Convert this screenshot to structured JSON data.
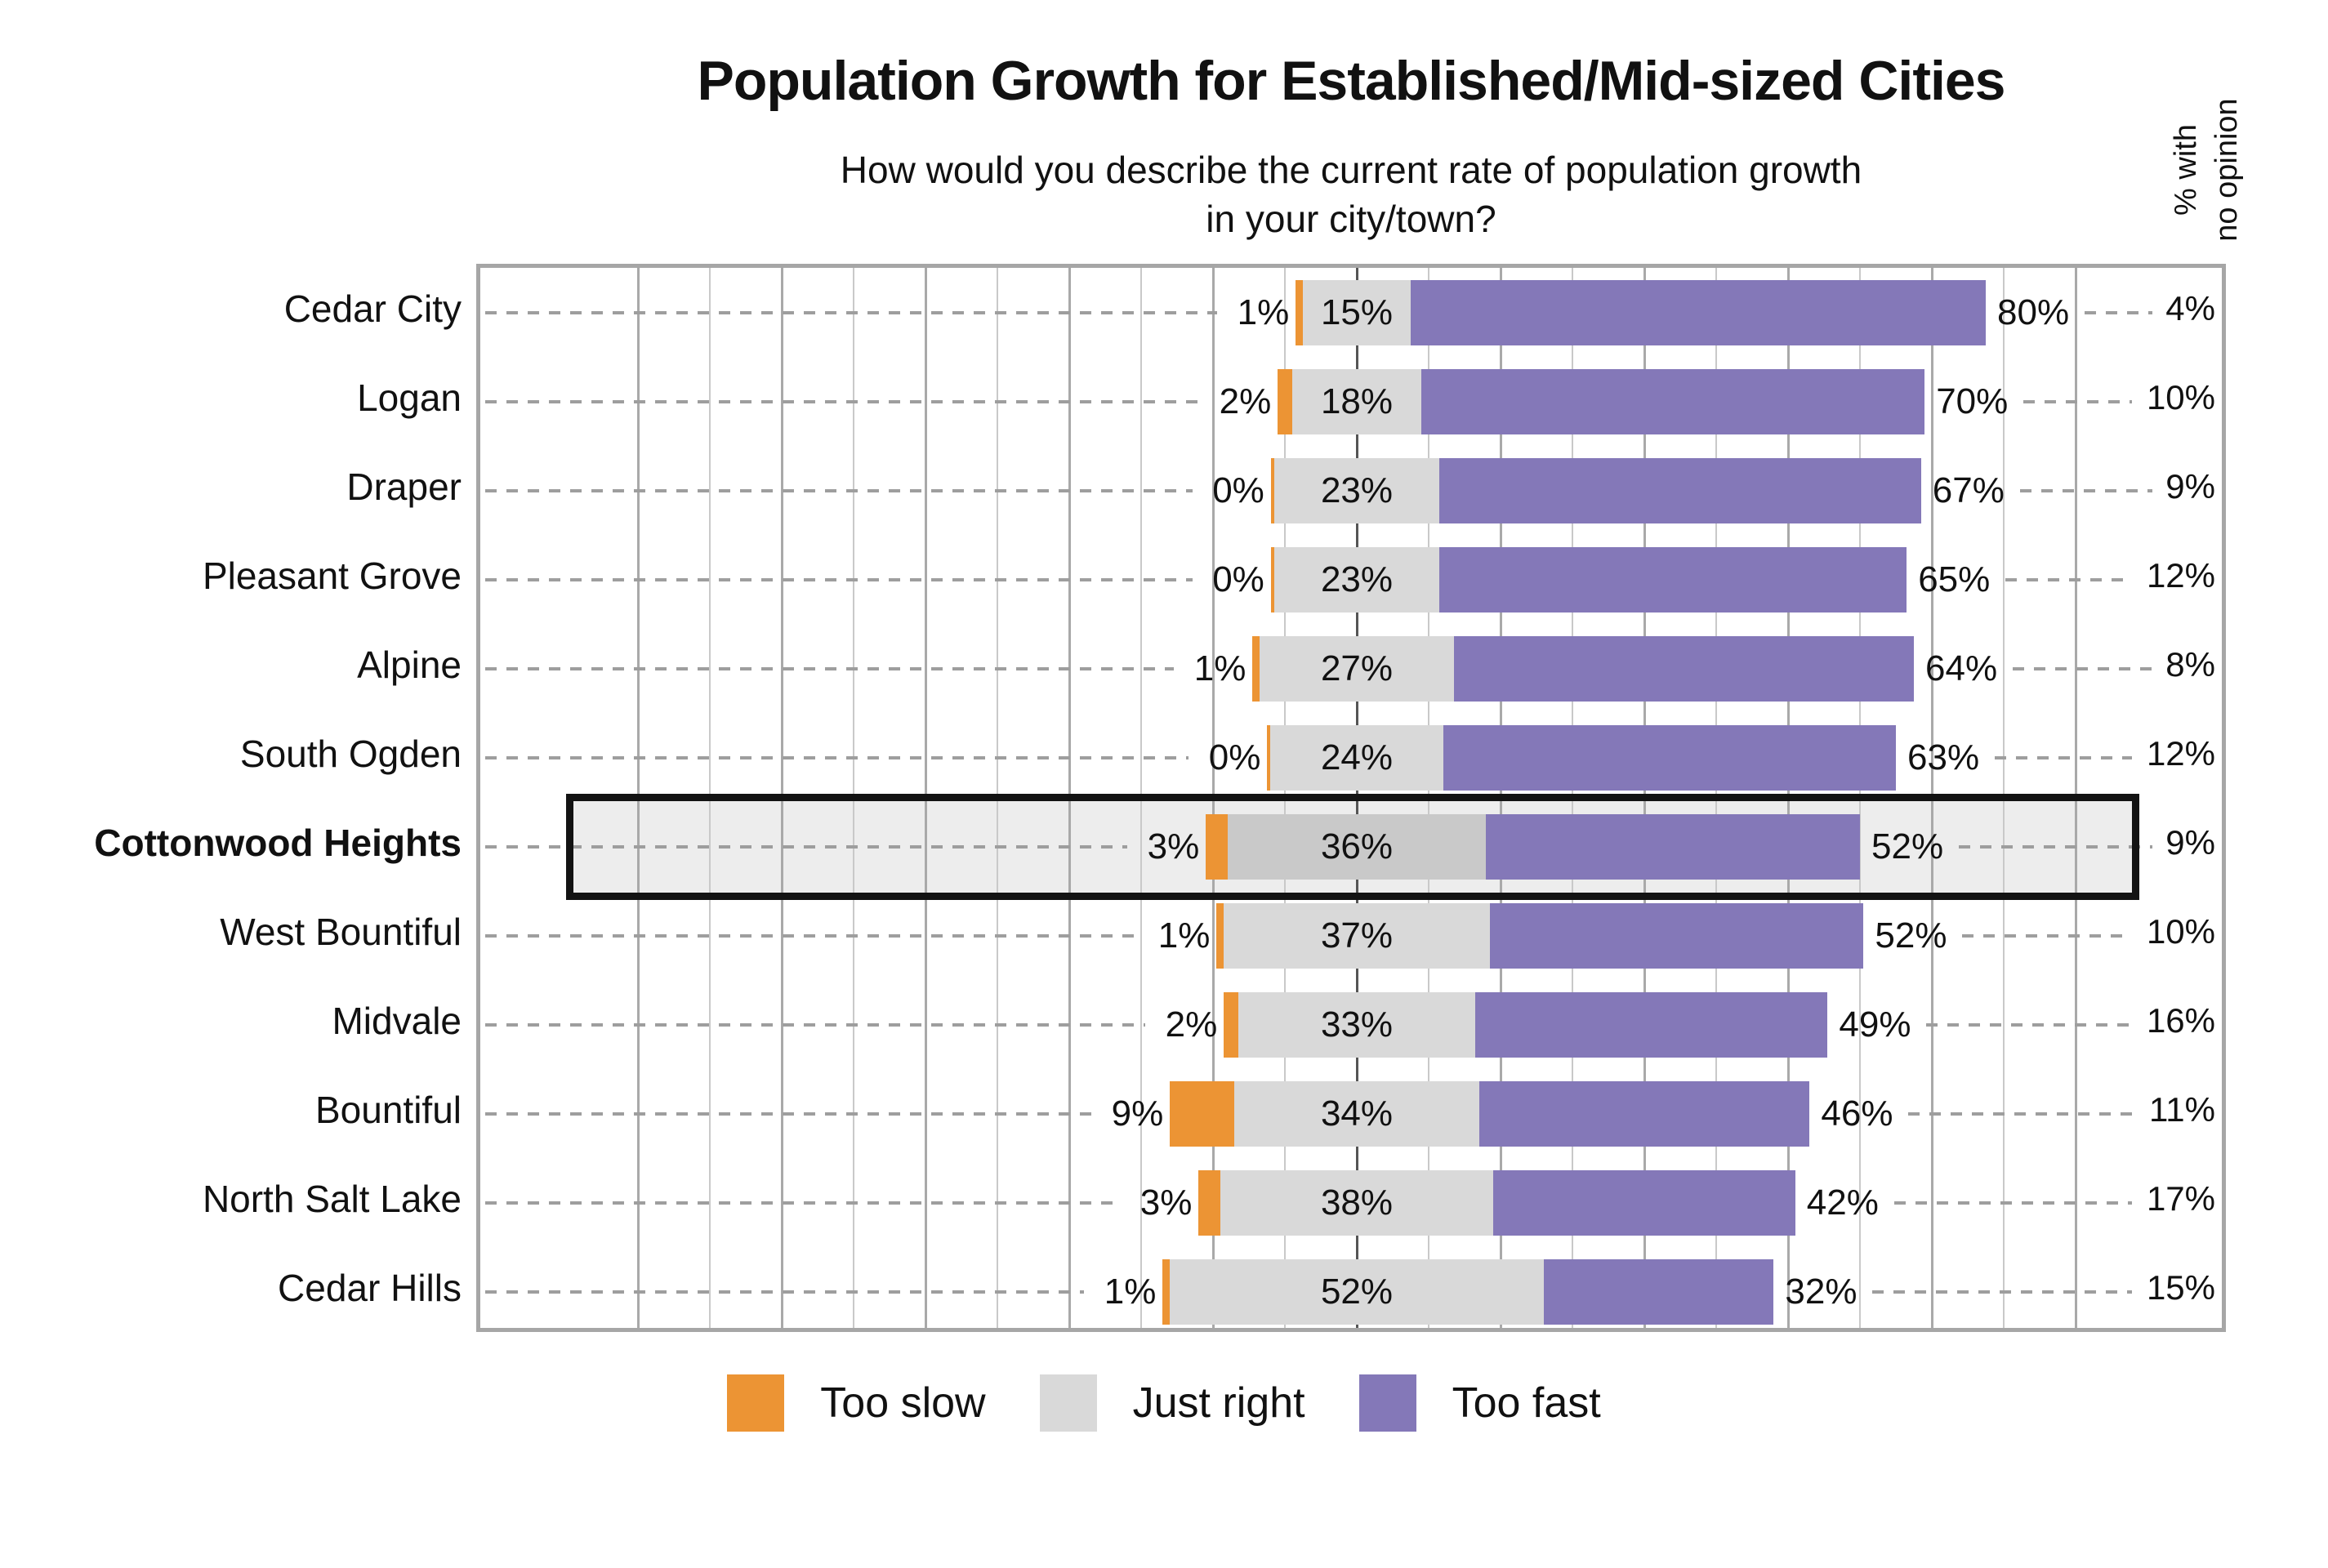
{
  "title": "Population Growth for Established/Mid-sized Cities",
  "subtitle": "How would you describe the current rate of population growth\nin your city/town?",
  "right_axis_label": "% with\nno opinion",
  "value_suffix": "%",
  "colors": {
    "too_slow": "#EC9434",
    "just_right": "#D9D9D9",
    "just_right_highlighted": "#C9C9C9",
    "too_fast": "#8478B8",
    "highlight_box_fill": "#EDEDED",
    "highlight_box_border": "#131313",
    "plot_border": "#A6A6A6",
    "gridline_minor": "#C9C9C9",
    "gridline_major": "#A9A9A9",
    "center_axis": "#555555",
    "leader_dash": "#9E9E9E"
  },
  "chart_data": {
    "type": "bar",
    "orientation": "horizontal",
    "variant": "diverging-stacked",
    "anchor_note": "'Just right' segment is centered on the vertical zero axis; 'Too slow' extends left, 'Too fast' extends right",
    "categories": [
      "Cedar City",
      "Logan",
      "Draper",
      "Pleasant Grove",
      "Alpine",
      "South Ogden",
      "Cottonwood Heights",
      "West Bountiful",
      "Midvale",
      "Bountiful",
      "North Salt Lake",
      "Cedar Hills"
    ],
    "series": [
      {
        "name": "Too slow",
        "color": "#EC9434",
        "values": [
          1,
          2,
          0,
          0,
          1,
          0,
          3,
          1,
          2,
          9,
          3,
          1
        ]
      },
      {
        "name": "Just right",
        "color": "#D9D9D9",
        "values": [
          15,
          18,
          23,
          23,
          27,
          24,
          36,
          37,
          33,
          34,
          38,
          52
        ]
      },
      {
        "name": "Too fast",
        "color": "#8478B8",
        "values": [
          80,
          70,
          67,
          65,
          64,
          63,
          52,
          52,
          49,
          46,
          42,
          32
        ]
      }
    ],
    "no_opinion": {
      "label": "% with no opinion",
      "values": [
        4,
        10,
        9,
        12,
        8,
        12,
        9,
        10,
        16,
        11,
        17,
        15
      ]
    },
    "highlighted_category": "Cottonwood Heights",
    "grid": {
      "minor_step_pct": 10,
      "major_step_pct": 20,
      "range_pct": [
        -100,
        100
      ]
    },
    "legend_position": "bottom",
    "legend_labels": [
      "Too slow",
      "Just right",
      "Too fast"
    ]
  }
}
